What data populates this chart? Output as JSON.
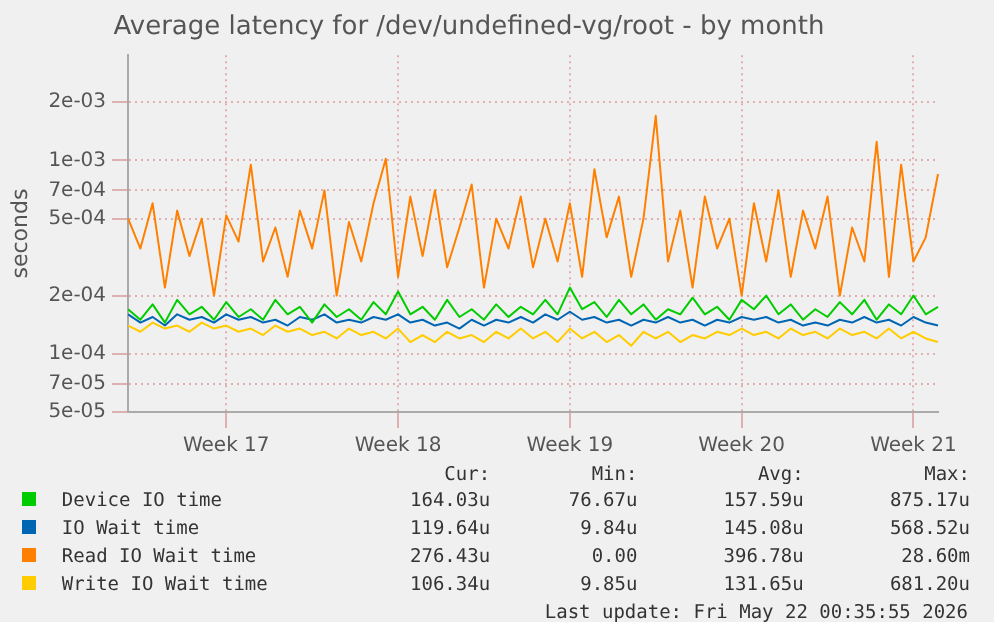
{
  "chart_data": {
    "type": "line",
    "title": "Average latency for /dev/undefined-vg/root - by month",
    "ylabel": "seconds",
    "log": "y",
    "grid": true,
    "legend": "bottom",
    "marker": "none",
    "line_style": "solid",
    "categories": [
      null,
      null,
      null,
      null,
      null,
      null,
      null,
      null,
      "Week 17",
      null,
      null,
      null,
      null,
      null,
      null,
      null,
      null,
      null,
      null,
      null,
      null,
      null,
      "Week 18",
      null,
      null,
      null,
      null,
      null,
      null,
      null,
      null,
      null,
      null,
      null,
      null,
      null,
      "Week 19",
      null,
      null,
      null,
      null,
      null,
      null,
      null,
      null,
      null,
      null,
      null,
      null,
      null,
      "Week 20",
      null,
      null,
      null,
      null,
      null,
      null,
      null,
      null,
      null,
      null,
      null,
      null,
      null,
      "Week 21",
      null,
      null
    ],
    "ylim": [
      5e-05,
      0.0035
    ],
    "yticks": [
      {
        "value": 5e-05,
        "label": "5e-05"
      },
      {
        "value": 7e-05,
        "label": "7e-05"
      },
      {
        "value": 0.0001,
        "label": "1e-04"
      },
      {
        "value": 0.0002,
        "label": "2e-04"
      },
      {
        "value": 0.0005,
        "label": "5e-04"
      },
      {
        "value": 0.0007,
        "label": "7e-04"
      },
      {
        "value": 0.001,
        "label": "1e-03"
      },
      {
        "value": 0.002,
        "label": "2e-03"
      }
    ],
    "series": [
      {
        "name": "Device IO time",
        "color": "#00cc00",
        "values": [
          0.00017,
          0.00015,
          0.00018,
          0.000145,
          0.00019,
          0.00016,
          0.000175,
          0.00015,
          0.000185,
          0.000155,
          0.00017,
          0.00015,
          0.00019,
          0.00016,
          0.000175,
          0.000145,
          0.00018,
          0.000155,
          0.00017,
          0.00015,
          0.000185,
          0.00016,
          0.00021,
          0.00016,
          0.000175,
          0.00015,
          0.00019,
          0.000155,
          0.00017,
          0.00015,
          0.00018,
          0.000155,
          0.000175,
          0.00016,
          0.00019,
          0.00016,
          0.00022,
          0.00017,
          0.000185,
          0.000155,
          0.00019,
          0.00016,
          0.00018,
          0.00015,
          0.00017,
          0.00016,
          0.000195,
          0.00016,
          0.000175,
          0.00015,
          0.00019,
          0.00017,
          0.0002,
          0.00016,
          0.00018,
          0.00015,
          0.00017,
          0.000155,
          0.000185,
          0.00016,
          0.00019,
          0.00015,
          0.00018,
          0.00016,
          0.0002,
          0.00016,
          0.000175
        ]
      },
      {
        "name": "IO Wait time",
        "color": "#0066b3",
        "values": [
          0.00016,
          0.000145,
          0.000155,
          0.00014,
          0.00016,
          0.00015,
          0.000155,
          0.000145,
          0.00016,
          0.00015,
          0.000155,
          0.000145,
          0.00015,
          0.00014,
          0.000155,
          0.00015,
          0.00016,
          0.000145,
          0.00015,
          0.000145,
          0.000155,
          0.00015,
          0.00016,
          0.000145,
          0.00015,
          0.00014,
          0.000145,
          0.000135,
          0.00015,
          0.00014,
          0.00015,
          0.000145,
          0.000155,
          0.000145,
          0.00016,
          0.00015,
          0.000165,
          0.00015,
          0.000155,
          0.000145,
          0.00015,
          0.00014,
          0.00015,
          0.000145,
          0.000155,
          0.000145,
          0.00015,
          0.00014,
          0.00015,
          0.000145,
          0.000155,
          0.00015,
          0.000155,
          0.000145,
          0.00015,
          0.00014,
          0.000145,
          0.00014,
          0.00015,
          0.000145,
          0.000155,
          0.000145,
          0.00015,
          0.00014,
          0.000155,
          0.000145,
          0.00014
        ]
      },
      {
        "name": "Read IO Wait time",
        "color": "#ff8000",
        "values": [
          0.0005,
          0.00035,
          0.0006,
          0.00022,
          0.00055,
          0.00032,
          0.0005,
          0.0002,
          0.00052,
          0.00038,
          0.00095,
          0.0003,
          0.00045,
          0.00025,
          0.00055,
          0.00035,
          0.0007,
          0.0002,
          0.00048,
          0.0003,
          0.0006,
          0.00102,
          0.00025,
          0.00065,
          0.00032,
          0.0007,
          0.00028,
          0.00045,
          0.00075,
          0.00022,
          0.0005,
          0.00035,
          0.00065,
          0.00028,
          0.0005,
          0.0003,
          0.0006,
          0.00025,
          0.0009,
          0.0004,
          0.00065,
          0.00025,
          0.0005,
          0.0017,
          0.0003,
          0.00055,
          0.00022,
          0.00065,
          0.00035,
          0.0005,
          0.0002,
          0.0006,
          0.0003,
          0.0007,
          0.00025,
          0.00055,
          0.00035,
          0.00065,
          0.0002,
          0.00045,
          0.0003,
          0.00125,
          0.00025,
          0.00095,
          0.0003,
          0.0004,
          0.00085
        ]
      },
      {
        "name": "Write IO Wait time",
        "color": "#ffcc00",
        "values": [
          0.00014,
          0.00013,
          0.000145,
          0.000135,
          0.00014,
          0.00013,
          0.000145,
          0.000135,
          0.00014,
          0.00013,
          0.000135,
          0.000125,
          0.00014,
          0.00013,
          0.000135,
          0.000125,
          0.00013,
          0.00012,
          0.000135,
          0.000125,
          0.00013,
          0.00012,
          0.000135,
          0.000115,
          0.000125,
          0.000115,
          0.00013,
          0.00012,
          0.000125,
          0.000115,
          0.00013,
          0.00012,
          0.000135,
          0.00012,
          0.00013,
          0.000115,
          0.000135,
          0.00012,
          0.00013,
          0.000115,
          0.000125,
          0.00011,
          0.00013,
          0.00012,
          0.00013,
          0.000115,
          0.000125,
          0.00012,
          0.00013,
          0.000125,
          0.000135,
          0.000125,
          0.00013,
          0.00012,
          0.000135,
          0.000125,
          0.00013,
          0.00012,
          0.000135,
          0.000125,
          0.00013,
          0.00012,
          0.000135,
          0.00012,
          0.00013,
          0.00012,
          0.000115
        ]
      }
    ],
    "annotations": [
      "Cur:",
      "Min:",
      "Avg:",
      "Max:",
      "164.03u",
      "76.67u",
      "157.59u",
      "875.17u",
      "119.64u",
      "9.84u",
      "145.08u",
      "568.52u",
      "276.43u",
      "0.00",
      "396.78u",
      "28.60m",
      "106.34u",
      "9.85u",
      "131.65u",
      "681.20u",
      "Last update: Fri May 22 00:35:55 2026"
    ]
  }
}
